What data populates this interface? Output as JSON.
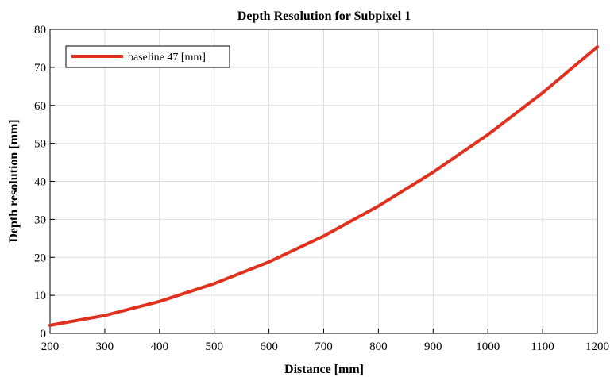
{
  "chart_data": {
    "type": "line",
    "title": "Depth Resolution for Subpixel 1",
    "xlabel": "Distance [mm]",
    "ylabel": "Depth resolution [mm]",
    "xlim": [
      200,
      1200
    ],
    "ylim": [
      0,
      80
    ],
    "xticks": [
      200,
      300,
      400,
      500,
      600,
      700,
      800,
      900,
      1000,
      1100,
      1200
    ],
    "yticks": [
      0,
      10,
      20,
      30,
      40,
      50,
      60,
      70,
      80
    ],
    "grid": true,
    "legend_position": "top-left",
    "series": [
      {
        "name": "baseline 47 [mm]",
        "color": "#e0301e",
        "x": [
          200,
          300,
          400,
          500,
          600,
          700,
          800,
          900,
          1000,
          1100,
          1200
        ],
        "y": [
          2.1,
          4.7,
          8.4,
          13.1,
          18.8,
          25.6,
          33.5,
          42.4,
          52.3,
          63.3,
          75.4
        ]
      }
    ]
  }
}
